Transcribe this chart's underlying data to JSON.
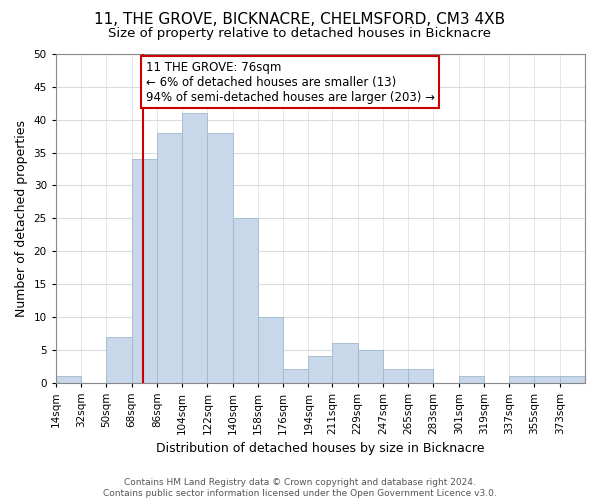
{
  "title": "11, THE GROVE, BICKNACRE, CHELMSFORD, CM3 4XB",
  "subtitle": "Size of property relative to detached houses in Bicknacre",
  "xlabel": "Distribution of detached houses by size in Bicknacre",
  "ylabel": "Number of detached properties",
  "bin_labels": [
    "14sqm",
    "32sqm",
    "50sqm",
    "68sqm",
    "86sqm",
    "104sqm",
    "122sqm",
    "140sqm",
    "158sqm",
    "176sqm",
    "194sqm",
    "211sqm",
    "229sqm",
    "247sqm",
    "265sqm",
    "283sqm",
    "301sqm",
    "319sqm",
    "337sqm",
    "355sqm",
    "373sqm"
  ],
  "bin_edges": [
    14,
    32,
    50,
    68,
    86,
    104,
    122,
    140,
    158,
    176,
    194,
    211,
    229,
    247,
    265,
    283,
    301,
    319,
    337,
    355,
    373,
    391
  ],
  "counts": [
    1,
    0,
    7,
    34,
    38,
    41,
    38,
    25,
    10,
    2,
    4,
    6,
    5,
    2,
    2,
    0,
    1,
    0,
    1,
    1,
    1
  ],
  "bar_color": "#c8d8ea",
  "bar_edge_color": "#a0b8cc",
  "property_line_x": 76,
  "property_line_color": "#cc0000",
  "annotation_line1": "11 THE GROVE: 76sqm",
  "annotation_line2": "← 6% of detached houses are smaller (13)",
  "annotation_line3": "94% of semi-detached houses are larger (203) →",
  "annotation_box_color": "#ffffff",
  "annotation_box_edge_color": "#cc0000",
  "ylim": [
    0,
    50
  ],
  "yticks": [
    0,
    5,
    10,
    15,
    20,
    25,
    30,
    35,
    40,
    45,
    50
  ],
  "footer_text": "Contains HM Land Registry data © Crown copyright and database right 2024.\nContains public sector information licensed under the Open Government Licence v3.0.",
  "background_color": "#ffffff",
  "plot_background_color": "#ffffff",
  "grid_color": "#d8dde2",
  "title_fontsize": 11,
  "subtitle_fontsize": 9.5,
  "xlabel_fontsize": 9,
  "ylabel_fontsize": 9,
  "tick_fontsize": 7.5,
  "annot_fontsize": 8.5
}
